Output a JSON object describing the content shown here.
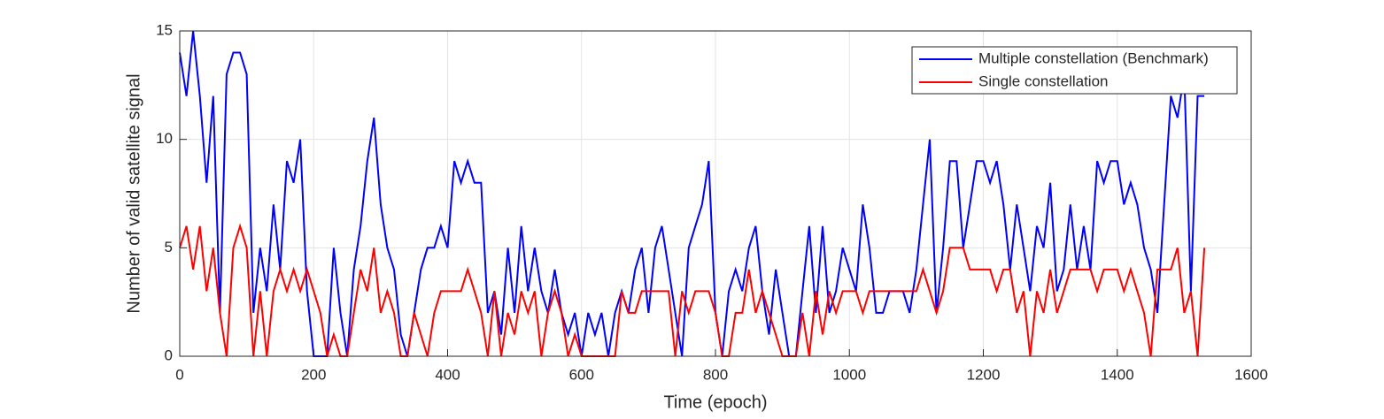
{
  "chart_data": {
    "type": "line",
    "xlabel": "Time (epoch)",
    "ylabel": "Number of valid satellite signal",
    "x": [
      0,
      10,
      20,
      30,
      40,
      50,
      60,
      70,
      80,
      90,
      100,
      110,
      120,
      130,
      140,
      150,
      160,
      170,
      180,
      190,
      200,
      210,
      220,
      230,
      240,
      250,
      260,
      270,
      280,
      290,
      300,
      310,
      320,
      330,
      340,
      350,
      360,
      370,
      380,
      390,
      400,
      410,
      420,
      430,
      440,
      450,
      460,
      470,
      480,
      490,
      500,
      510,
      520,
      530,
      540,
      550,
      560,
      570,
      580,
      590,
      600,
      610,
      620,
      630,
      640,
      650,
      660,
      670,
      680,
      690,
      700,
      710,
      720,
      730,
      740,
      750,
      760,
      770,
      780,
      790,
      800,
      810,
      820,
      830,
      840,
      850,
      860,
      870,
      880,
      890,
      900,
      910,
      920,
      930,
      940,
      950,
      960,
      970,
      980,
      990,
      1000,
      1010,
      1020,
      1030,
      1040,
      1050,
      1060,
      1070,
      1080,
      1090,
      1100,
      1110,
      1120,
      1130,
      1140,
      1150,
      1160,
      1170,
      1180,
      1190,
      1200,
      1210,
      1220,
      1230,
      1240,
      1250,
      1260,
      1270,
      1280,
      1290,
      1300,
      1310,
      1320,
      1330,
      1340,
      1350,
      1360,
      1370,
      1380,
      1390,
      1400,
      1410,
      1420,
      1430,
      1440,
      1450,
      1460,
      1470,
      1480,
      1490,
      1500,
      1510,
      1520,
      1530
    ],
    "series": [
      {
        "name": "Multiple constellation (Benchmark)",
        "color": "#0000ff",
        "values": [
          14,
          12,
          15,
          12,
          8,
          12,
          2,
          13,
          14,
          14,
          13,
          2,
          5,
          3,
          7,
          4,
          9,
          8,
          10,
          3,
          0,
          0,
          0,
          5,
          2,
          0,
          4,
          6,
          9,
          11,
          7,
          5,
          4,
          1,
          0,
          2,
          4,
          5,
          5,
          6,
          5,
          9,
          8,
          9,
          8,
          8,
          2,
          3,
          1,
          5,
          2,
          6,
          3,
          5,
          3,
          2,
          4,
          2,
          1,
          2,
          0,
          2,
          1,
          2,
          0,
          2,
          3,
          2,
          4,
          5,
          2,
          5,
          6,
          4,
          2,
          0,
          5,
          6,
          7,
          9,
          2,
          0,
          3,
          4,
          3,
          5,
          6,
          3,
          1,
          4,
          2,
          0,
          0,
          3,
          6,
          2,
          6,
          2,
          3,
          5,
          4,
          3,
          7,
          5,
          2,
          2,
          3,
          3,
          3,
          2,
          4,
          7,
          10,
          2,
          5,
          9,
          9,
          5,
          7,
          9,
          9,
          8,
          9,
          7,
          4,
          7,
          5,
          3,
          6,
          5,
          8,
          3,
          4,
          7,
          4,
          6,
          4,
          9,
          8,
          9,
          9,
          7,
          8,
          7,
          5,
          4,
          2,
          7,
          12,
          11,
          13,
          3,
          12,
          12
        ]
      },
      {
        "name": "Single constellation",
        "color": "#ff0000",
        "values": [
          5,
          6,
          4,
          6,
          3,
          5,
          2,
          0,
          5,
          6,
          5,
          0,
          3,
          0,
          3,
          4,
          3,
          4,
          3,
          4,
          3,
          2,
          0,
          1,
          0,
          0,
          2,
          4,
          3,
          5,
          2,
          3,
          2,
          0,
          0,
          2,
          1,
          0,
          2,
          3,
          3,
          3,
          3,
          4,
          3,
          2,
          0,
          3,
          0,
          2,
          1,
          3,
          2,
          3,
          0,
          2,
          3,
          2,
          0,
          1,
          0,
          0,
          0,
          0,
          0,
          0,
          3,
          2,
          2,
          3,
          3,
          3,
          3,
          3,
          0,
          3,
          2,
          3,
          3,
          3,
          2,
          0,
          0,
          2,
          2,
          4,
          2,
          3,
          2,
          1,
          0,
          0,
          0,
          2,
          0,
          3,
          1,
          3,
          2,
          3,
          3,
          3,
          2,
          3,
          3,
          3,
          3,
          3,
          3,
          3,
          3,
          4,
          3,
          2,
          3,
          5,
          5,
          5,
          4,
          4,
          4,
          4,
          3,
          4,
          4,
          2,
          3,
          0,
          3,
          2,
          4,
          2,
          3,
          4,
          4,
          4,
          4,
          3,
          4,
          4,
          4,
          3,
          4,
          3,
          2,
          0,
          4,
          4,
          4,
          5,
          2,
          3,
          0,
          5
        ]
      }
    ],
    "xlim": [
      0,
      1600
    ],
    "xticks": [
      0,
      200,
      400,
      600,
      800,
      1000,
      1200,
      1400,
      1600
    ],
    "ylim": [
      0,
      15
    ],
    "yticks": [
      0,
      5,
      10,
      15
    ],
    "grid": true,
    "legend": "upper right"
  }
}
